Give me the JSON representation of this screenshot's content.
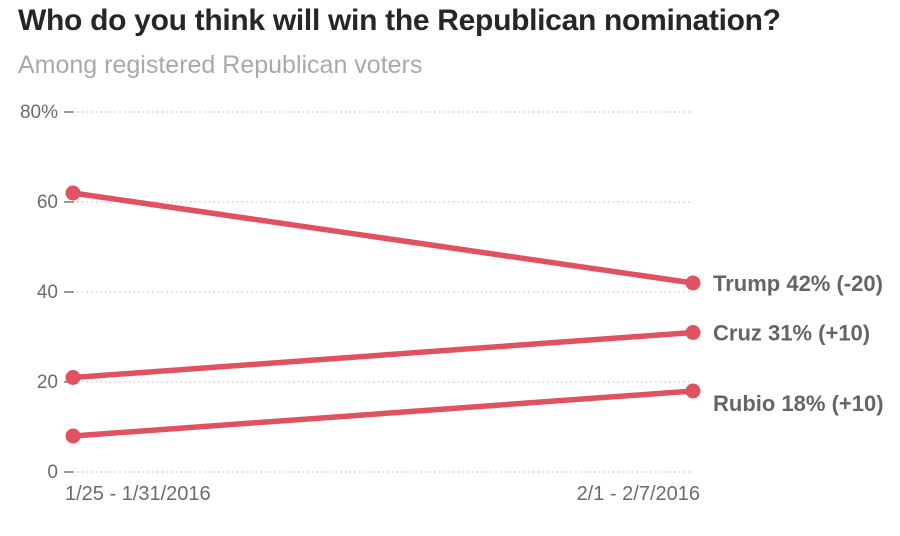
{
  "title": "Who do you think will win the Republican nomination?",
  "subtitle": "Among registered Republican voters",
  "colors": {
    "line": "#e0525f",
    "title_text": "#262626",
    "subtitle_text": "#a9a9a9",
    "axis_text": "#6b6b6b",
    "series_label_text": "#656565",
    "grid": "#cfcfcf",
    "tick": "#9a9a9a",
    "background": "#ffffff"
  },
  "chart_data": {
    "type": "line",
    "title": "Who do you think will win the Republican nomination?",
    "subtitle": "Among registered Republican voters",
    "categories": [
      "1/25 - 1/31/2016",
      "2/1 - 2/7/2016"
    ],
    "series": [
      {
        "name": "Trump",
        "values": [
          62,
          42
        ],
        "end_label": "Trump 42% (-20)"
      },
      {
        "name": "Cruz",
        "values": [
          21,
          31
        ],
        "end_label": "Cruz 31% (+10)"
      },
      {
        "name": "Rubio",
        "values": [
          8,
          18
        ],
        "end_label": "Rubio 18% (+10)"
      }
    ],
    "y_ticks": [
      {
        "value": 80,
        "label": "80%"
      },
      {
        "value": 60,
        "label": "60"
      },
      {
        "value": 40,
        "label": "40"
      },
      {
        "value": 20,
        "label": "20"
      },
      {
        "value": 0,
        "label": "0"
      }
    ],
    "ylim": [
      0,
      80
    ],
    "grid": "horizontal-dotted",
    "legend_position": "labels-right-of-last-point",
    "markers": "filled-circles-at-endpoints"
  }
}
